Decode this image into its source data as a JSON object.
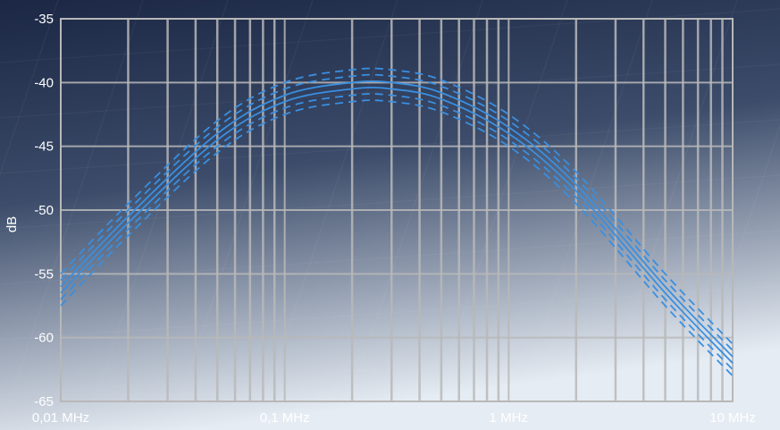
{
  "chart_data": {
    "type": "line",
    "title": "",
    "xlabel": "",
    "ylabel": "dB",
    "x_scale": "log",
    "xlim": [
      0.01,
      10
    ],
    "ylim": [
      -65,
      -35
    ],
    "grid": true,
    "legend": "none",
    "x_ticks": [
      {
        "value": 0.01,
        "label": "0,01 MHz"
      },
      {
        "value": 0.1,
        "label": "0,1 MHz"
      },
      {
        "value": 1,
        "label": "1 MHz"
      },
      {
        "value": 10,
        "label": "10 MHz"
      }
    ],
    "y_ticks": [
      {
        "value": -35,
        "label": "-35"
      },
      {
        "value": -40,
        "label": "-40"
      },
      {
        "value": -45,
        "label": "-45"
      },
      {
        "value": -50,
        "label": "-50"
      },
      {
        "value": -55,
        "label": "-55"
      },
      {
        "value": -60,
        "label": "-60"
      },
      {
        "value": -65,
        "label": "-65"
      }
    ],
    "series": [
      {
        "style": "solid",
        "x": [
          0.01,
          0.02,
          0.05,
          0.1,
          0.2,
          0.3,
          0.5,
          1,
          2,
          5,
          10
        ],
        "values": [
          -56.0,
          -50.5,
          -44.0,
          -41.0,
          -40.0,
          -40.0,
          -40.8,
          -43.5,
          -48.0,
          -56.0,
          -61.5
        ]
      },
      {
        "style": "solid",
        "x": [
          0.01,
          0.02,
          0.05,
          0.1,
          0.2,
          0.3,
          0.5,
          1,
          2,
          5,
          10
        ],
        "values": [
          -56.5,
          -51.0,
          -44.5,
          -41.5,
          -40.5,
          -40.5,
          -41.3,
          -44.0,
          -48.5,
          -56.5,
          -62.0
        ]
      },
      {
        "style": "dashed",
        "x": [
          0.01,
          0.02,
          0.05,
          0.1,
          0.2,
          0.3,
          0.5,
          1,
          2,
          5,
          10
        ],
        "values": [
          -55.0,
          -49.5,
          -43.0,
          -40.0,
          -39.0,
          -39.0,
          -39.8,
          -42.5,
          -47.0,
          -55.0,
          -60.5
        ]
      },
      {
        "style": "dashed",
        "x": [
          0.01,
          0.02,
          0.05,
          0.1,
          0.2,
          0.3,
          0.5,
          1,
          2,
          5,
          10
        ],
        "values": [
          -55.5,
          -50.0,
          -43.5,
          -40.5,
          -39.5,
          -39.5,
          -40.3,
          -43.0,
          -47.5,
          -55.5,
          -61.0
        ]
      },
      {
        "style": "dashed",
        "x": [
          0.01,
          0.02,
          0.05,
          0.1,
          0.2,
          0.3,
          0.5,
          1,
          2,
          5,
          10
        ],
        "values": [
          -57.0,
          -51.5,
          -45.0,
          -42.0,
          -41.0,
          -41.0,
          -41.8,
          -44.5,
          -49.0,
          -57.0,
          -62.5
        ]
      },
      {
        "style": "dashed",
        "x": [
          0.01,
          0.02,
          0.05,
          0.1,
          0.2,
          0.3,
          0.5,
          1,
          2,
          5,
          10
        ],
        "values": [
          -57.5,
          -52.0,
          -45.5,
          -42.5,
          -41.5,
          -41.5,
          -42.3,
          -45.0,
          -49.5,
          -57.5,
          -63.0
        ]
      }
    ],
    "colors": {
      "bg_top": "#1b2744",
      "bg_bottom": "#e6ecf3",
      "grid": "#b8b8b8",
      "line": "#3a8fe0"
    }
  }
}
